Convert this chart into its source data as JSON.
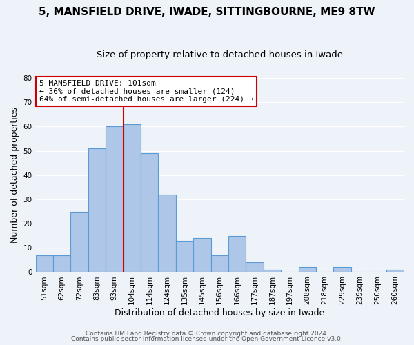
{
  "title": "5, MANSFIELD DRIVE, IWADE, SITTINGBOURNE, ME9 8TW",
  "subtitle": "Size of property relative to detached houses in Iwade",
  "xlabel": "Distribution of detached houses by size in Iwade",
  "ylabel": "Number of detached properties",
  "bin_labels": [
    "51sqm",
    "62sqm",
    "72sqm",
    "83sqm",
    "93sqm",
    "104sqm",
    "114sqm",
    "124sqm",
    "135sqm",
    "145sqm",
    "156sqm",
    "166sqm",
    "177sqm",
    "187sqm",
    "197sqm",
    "208sqm",
    "218sqm",
    "229sqm",
    "239sqm",
    "250sqm",
    "260sqm"
  ],
  "bar_heights": [
    7,
    7,
    25,
    51,
    60,
    61,
    49,
    32,
    13,
    14,
    7,
    15,
    4,
    1,
    0,
    2,
    0,
    2,
    0,
    0,
    1
  ],
  "bar_color": "#aec6e8",
  "bar_edge_color": "#5b9bd5",
  "vline_x_idx": 4.5,
  "vline_color": "#cc0000",
  "annotation_title": "5 MANSFIELD DRIVE: 101sqm",
  "annotation_line1": "← 36% of detached houses are smaller (124)",
  "annotation_line2": "64% of semi-detached houses are larger (224) →",
  "annotation_box_edge": "#cc0000",
  "ylim": [
    0,
    80
  ],
  "yticks": [
    0,
    10,
    20,
    30,
    40,
    50,
    60,
    70,
    80
  ],
  "footer1": "Contains HM Land Registry data © Crown copyright and database right 2024.",
  "footer2": "Contains public sector information licensed under the Open Government Licence v3.0.",
  "background_color": "#eef2f9",
  "grid_color": "#ffffff",
  "title_fontsize": 11,
  "subtitle_fontsize": 9.5,
  "axis_label_fontsize": 9,
  "tick_fontsize": 7.5,
  "footer_fontsize": 6.5
}
